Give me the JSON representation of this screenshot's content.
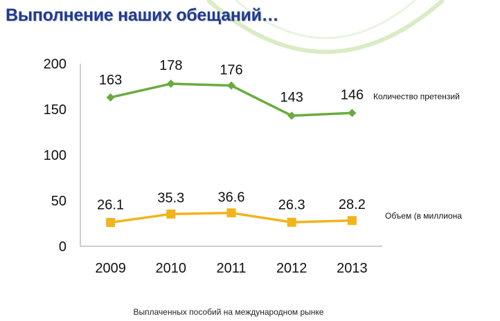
{
  "slide": {
    "title": "Выполнение наших обещаний…",
    "footnote": "Выплаченных пособий на международном рынке"
  },
  "colors": {
    "series_green": "#6aab3f",
    "series_yellow": "#f0b41c",
    "title": "#1f3a93",
    "decor_arc": "#d9ecc4"
  },
  "chart_data": {
    "type": "line",
    "categories": [
      "2009",
      "2010",
      "2011",
      "2012",
      "2013"
    ],
    "ylim": [
      0,
      200
    ],
    "yticks": [
      0,
      50,
      100,
      150,
      200
    ],
    "grid": false,
    "series": [
      {
        "name": "Количество претензий",
        "values": [
          163,
          178,
          176,
          143,
          146
        ],
        "labels": [
          "163",
          "178",
          "176",
          "143",
          "146"
        ],
        "marker": "diamond",
        "color": "#6aab3f"
      },
      {
        "name": "Объем (в миллиона",
        "values": [
          26.1,
          35.3,
          36.6,
          26.3,
          28.2
        ],
        "labels": [
          "26.1",
          "35.3",
          "36.6",
          "26.3",
          "28.2"
        ],
        "marker": "square",
        "color": "#f0b41c"
      }
    ]
  }
}
